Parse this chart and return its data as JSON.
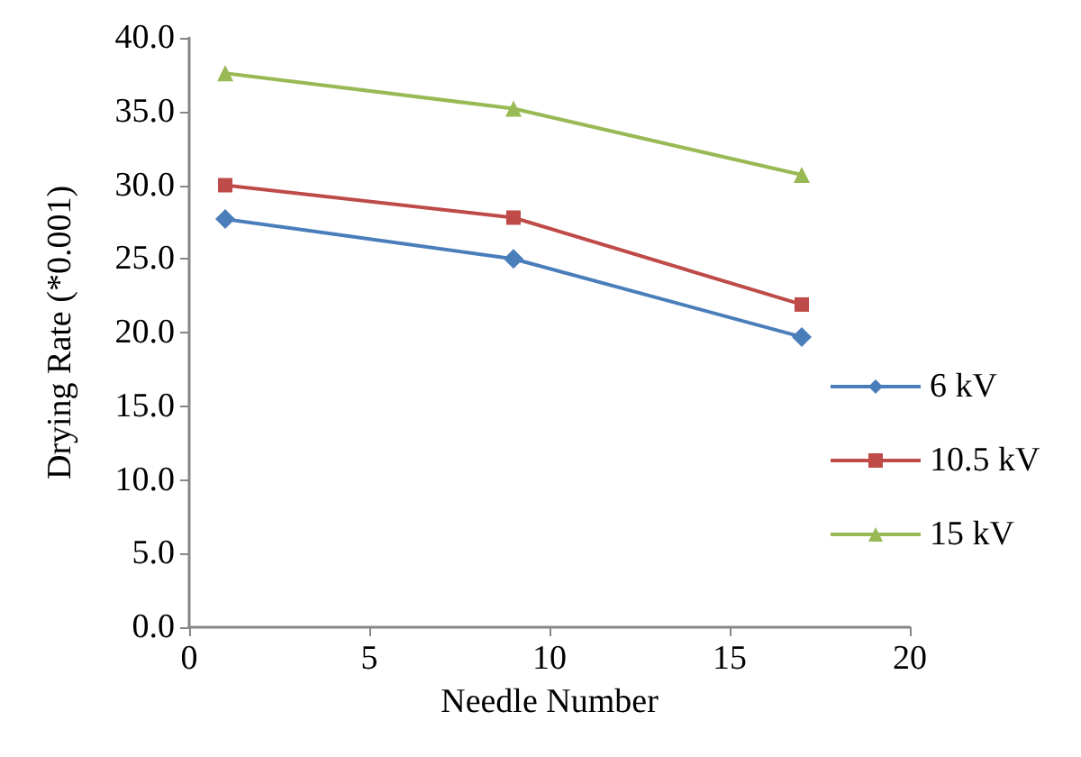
{
  "chart_data": {
    "type": "line",
    "xlabel": "Needle Number",
    "ylabel": "Drying Rate (*0.001)",
    "x": [
      1,
      9,
      17
    ],
    "series": [
      {
        "name": "6 kV",
        "color": "#4a7ebb",
        "marker": "diamond",
        "values": [
          27.7,
          25.0,
          19.7
        ]
      },
      {
        "name": "10.5 kV",
        "color": "#be4b48",
        "marker": "square",
        "values": [
          30.0,
          27.8,
          21.9
        ]
      },
      {
        "name": "15 kV",
        "color": "#98b954",
        "marker": "triangle",
        "values": [
          37.6,
          35.2,
          30.7
        ]
      }
    ],
    "xlim": [
      0,
      20
    ],
    "xticks": [
      0,
      5,
      10,
      15,
      20
    ],
    "ylim": [
      0,
      40
    ],
    "yticks": [
      {
        "value": 0,
        "label": "0.0"
      },
      {
        "value": 5,
        "label": "5.0"
      },
      {
        "value": 10,
        "label": "10.0"
      },
      {
        "value": 15,
        "label": "15.0"
      },
      {
        "value": 20,
        "label": "20.0"
      },
      {
        "value": 25,
        "label": "25.0"
      },
      {
        "value": 30,
        "label": "30.0"
      },
      {
        "value": 35,
        "label": "35.0"
      },
      {
        "value": 40,
        "label": "40.0"
      }
    ],
    "grid": false,
    "legend": "right",
    "line_style": "solid"
  }
}
